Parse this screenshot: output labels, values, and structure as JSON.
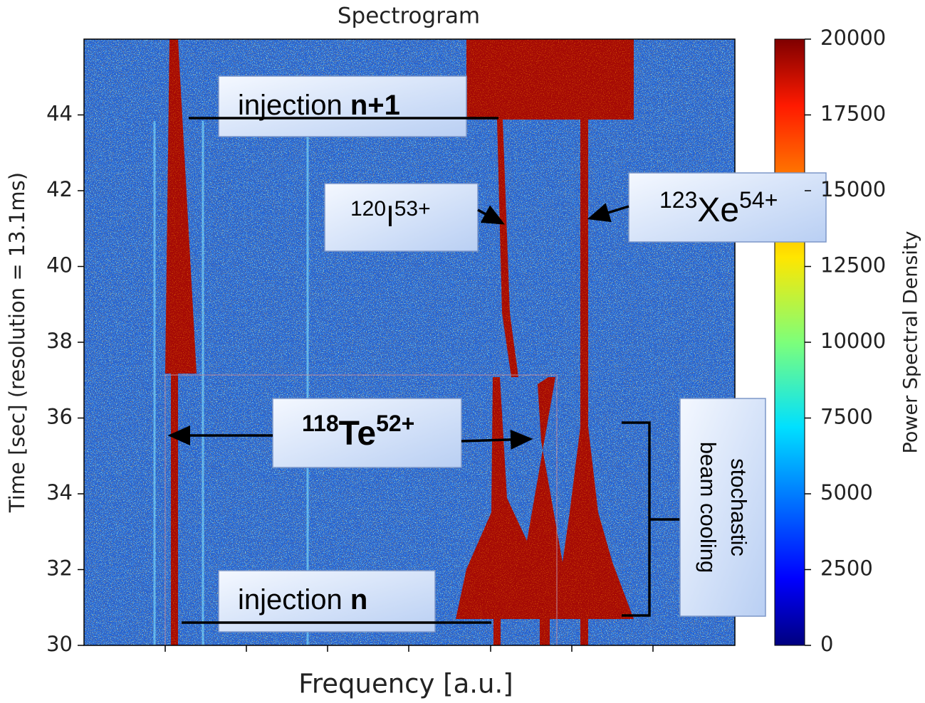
{
  "chart_data": {
    "type": "spectrogram",
    "title": "Spectrogram",
    "x_label": "Frequency [a.u.]",
    "y_label": "Time [sec] (resolution = 13.1ms)",
    "ylim": [
      30,
      46
    ],
    "yticks": [
      30,
      32,
      34,
      36,
      38,
      40,
      42,
      44
    ],
    "colorbar": {
      "label": "Power Spectral Density",
      "lim": [
        0,
        20000
      ],
      "ticks": [
        0,
        2500,
        5000,
        7500,
        10000,
        12500,
        15000,
        17500,
        20000
      ],
      "colormap": "jet"
    },
    "annotations": {
      "injection_next": [
        "injection ",
        "n+1"
      ],
      "iodine": {
        "mass": "120",
        "symbol": "I",
        "charge": "53+"
      },
      "xenon": {
        "mass": "123",
        "symbol": "Xe",
        "charge": "54+"
      },
      "tellurium": {
        "mass": "118",
        "symbol": "Te",
        "charge": "52+"
      },
      "injection": [
        "injection ",
        "n"
      ],
      "cooling": [
        "stochastic",
        "beam cooling"
      ]
    }
  }
}
